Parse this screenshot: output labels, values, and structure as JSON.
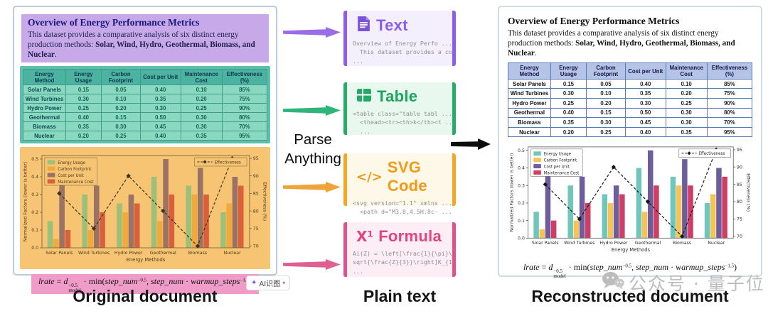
{
  "document": {
    "title": "Overview of Energy Performance Metrics",
    "paragraph_prefix": "This dataset provides a comparative analysis of six distinct energy production methods: ",
    "paragraph_bold": "Solar, Wind, Hydro, Geothermal, Biomass, and Nuclear",
    "paragraph_suffix": "."
  },
  "table": {
    "headers": [
      "Energy\nMethod",
      "Energy Usage",
      "Carbon\nFootprint",
      "Cost per Unit",
      "Maintenance\nCost",
      "Effectiveness\n(%)"
    ],
    "rows": [
      [
        "Solar Panels",
        "0.15",
        "0.05",
        "0.40",
        "0.10",
        "85%"
      ],
      [
        "Wind Turbines",
        "0.30",
        "0.10",
        "0.35",
        "0.20",
        "75%"
      ],
      [
        "Hydro Power",
        "0.25",
        "0.20",
        "0.30",
        "0.25",
        "90%"
      ],
      [
        "Geothermal",
        "0.40",
        "0.15",
        "0.50",
        "0.30",
        "80%"
      ],
      [
        "Biomass",
        "0.35",
        "0.30",
        "0.45",
        "0.30",
        "70%"
      ],
      [
        "Nuclear",
        "0.20",
        "0.25",
        "0.40",
        "0.35",
        "95%"
      ]
    ]
  },
  "chart_data": {
    "type": "grouped-bar+line",
    "categories": [
      "Solar Panels",
      "Wind Turbines",
      "Hydro Power",
      "Geothermal",
      "Biomass",
      "Nuclear"
    ],
    "series": [
      {
        "name": "Energy Usage",
        "values": [
          0.15,
          0.3,
          0.25,
          0.4,
          0.35,
          0.2
        ]
      },
      {
        "name": "Carbon Footprint",
        "values": [
          0.05,
          0.1,
          0.2,
          0.15,
          0.3,
          0.25
        ]
      },
      {
        "name": "Cost per Unit",
        "values": [
          0.4,
          0.35,
          0.3,
          0.5,
          0.45,
          0.4
        ]
      },
      {
        "name": "Maintenance Cost",
        "values": [
          0.1,
          0.2,
          0.25,
          0.3,
          0.3,
          0.35
        ]
      }
    ],
    "line": {
      "name": "Effectiveness",
      "values": [
        85,
        75,
        90,
        80,
        70,
        95
      ]
    },
    "xlabel": "Energy Methods",
    "ylabel": "Normalized Factors (lower is better)",
    "y2label": "Effectiveness (%)",
    "yticks": [
      0.0,
      0.1,
      0.2,
      0.3,
      0.4,
      0.5
    ],
    "y2ticks": [
      70,
      75,
      80,
      85,
      90,
      95
    ],
    "ylim": [
      0,
      0.52
    ],
    "y2lim": [
      69.5,
      95.8
    ],
    "legend_position": "upper-left",
    "grid": false,
    "variants": {
      "left": {
        "bar_colors": [
          "#9cc07a",
          "#f2a93c",
          "#9b7365",
          "#d9603a"
        ],
        "line_color": "#3d3116",
        "text_color": "#4a3c22",
        "frame_color": "#6b5a3a",
        "bg": "transparent",
        "legend_bg": "#f6c472"
      },
      "right": {
        "bar_colors": [
          "#70c6bb",
          "#f6c454",
          "#6d5d9d",
          "#cf3e62"
        ],
        "line_color": "#141414",
        "text_color": "#2a2a2a",
        "frame_color": "#555555",
        "bg": "#ffffff",
        "legend_bg": "#ffffff"
      }
    }
  },
  "formula": {
    "segments": [
      {
        "t": "lrate",
        "s": "i"
      },
      {
        "t": " = ",
        "s": ""
      },
      {
        "t": "d",
        "s": "i"
      },
      {
        "s": "supsub",
        "sup": "−0.5",
        "sub": "model"
      },
      {
        "t": " · min(",
        "s": ""
      },
      {
        "t": "step_num",
        "s": "i"
      },
      {
        "t": "−0.5",
        "s": "sup"
      },
      {
        "t": ", ",
        "s": ""
      },
      {
        "t": "step_num",
        "s": "i"
      },
      {
        "t": " · ",
        "s": ""
      },
      {
        "t": "warmup_steps",
        "s": "i"
      },
      {
        "t": "−1.5",
        "s": "sup"
      },
      {
        "t": ")",
        "s": ""
      }
    ]
  },
  "middle": {
    "parse_label": "Parse Anything",
    "boxes": [
      {
        "title": "Text",
        "icon": "document-icon",
        "code": "Overview of Energy Perfo ...\n  This dataset provides a co\n..."
      },
      {
        "title": "Table",
        "icon": "table-icon",
        "code": "<table class=\"table tabl ...\n  <thead><tr><th>k</th><t ...\n  ..."
      },
      {
        "title": "SVG Code",
        "icon": "code-icon",
        "icon_glyph": "</>",
        "code": "<svg version=\"1.1\" xmlns ...\n  <path d=\"M3.8,4.5H.8c- ...\n  ..."
      },
      {
        "title": "Formula",
        "icon": "formula-icon",
        "icon_glyph": "X¹",
        "code": "Ai(Z) = \\left[\\frac{1}{\\pi}\\\nsqrt{\\frac{Z}{3}}\\right]K_{1\n..."
      }
    ]
  },
  "labels": {
    "left": "Original document",
    "middle": "Plain text",
    "right": "Reconstructed document"
  },
  "watermark": {
    "text": "公众号 · 量子位",
    "icon": "wechat-icon"
  },
  "ai_button": {
    "label": "AI识图",
    "sparkle_icon": "✦",
    "chevron": "▾"
  },
  "colors": {
    "arrow_text": "#9b6ce8",
    "arrow_table": "#2fb579",
    "arrow_svg": "#f0a437",
    "arrow_formula": "#df5f93",
    "arrow_main": "#0d0d0d",
    "highlight_header": "#c7a9e9",
    "highlight_table": "#5ec0ac",
    "highlight_chart": "#f6c472",
    "highlight_formula": "#f09cc8"
  }
}
